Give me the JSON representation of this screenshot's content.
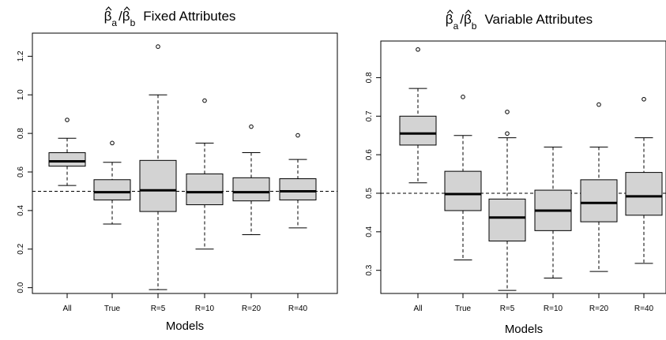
{
  "chart_data": [
    {
      "type": "boxplot",
      "title": {
        "sym_a": "β",
        "sub_a": "a",
        "sep": "/",
        "sym_b": "β",
        "sub_b": "b",
        "text": "Fixed Attributes"
      },
      "xlabel": "Models",
      "ylabel": "",
      "ylim": [
        -0.03,
        1.32
      ],
      "yticks": [
        "0.0",
        "0.2",
        "0.4",
        "0.6",
        "0.8",
        "1.0",
        "1.2"
      ],
      "reference_line": 0.5,
      "categories": [
        "All",
        "True",
        "R=5",
        "R=10",
        "R=20",
        "R=40"
      ],
      "boxes": [
        {
          "whisker_low": 0.53,
          "q1": 0.63,
          "median": 0.655,
          "q3": 0.7,
          "whisker_high": 0.775,
          "outliers": [
            0.87
          ]
        },
        {
          "whisker_low": 0.33,
          "q1": 0.455,
          "median": 0.495,
          "q3": 0.56,
          "whisker_high": 0.65,
          "outliers": [
            0.75
          ]
        },
        {
          "whisker_low": -0.01,
          "q1": 0.395,
          "median": 0.505,
          "q3": 0.66,
          "whisker_high": 1.0,
          "outliers": [
            1.25
          ]
        },
        {
          "whisker_low": 0.2,
          "q1": 0.43,
          "median": 0.495,
          "q3": 0.59,
          "whisker_high": 0.75,
          "outliers": [
            0.97
          ]
        },
        {
          "whisker_low": 0.275,
          "q1": 0.45,
          "median": 0.495,
          "q3": 0.57,
          "whisker_high": 0.7,
          "outliers": [
            0.835
          ]
        },
        {
          "whisker_low": 0.31,
          "q1": 0.455,
          "median": 0.5,
          "q3": 0.565,
          "whisker_high": 0.665,
          "outliers": [
            0.79
          ]
        }
      ]
    },
    {
      "type": "boxplot",
      "title": {
        "sym_a": "β",
        "sub_a": "a",
        "sep": "/",
        "sym_b": "β",
        "sub_b": "b",
        "text": "Variable Attributes"
      },
      "xlabel": "Models",
      "ylabel": "",
      "ylim": [
        0.24,
        0.895
      ],
      "yticks": [
        "0.3",
        "0.4",
        "0.5",
        "0.6",
        "0.7",
        "0.8"
      ],
      "reference_line": 0.5,
      "categories": [
        "All",
        "True",
        "R=5",
        "R=10",
        "R=20",
        "R=40"
      ],
      "boxes": [
        {
          "whisker_low": 0.527,
          "q1": 0.625,
          "median": 0.655,
          "q3": 0.7,
          "whisker_high": 0.772,
          "outliers": [
            0.873
          ]
        },
        {
          "whisker_low": 0.327,
          "q1": 0.455,
          "median": 0.498,
          "q3": 0.557,
          "whisker_high": 0.65,
          "outliers": [
            0.75
          ]
        },
        {
          "whisker_low": 0.248,
          "q1": 0.376,
          "median": 0.437,
          "q3": 0.485,
          "whisker_high": 0.644,
          "outliers": [
            0.655,
            0.711
          ]
        },
        {
          "whisker_low": 0.28,
          "q1": 0.403,
          "median": 0.455,
          "q3": 0.508,
          "whisker_high": 0.62,
          "outliers": []
        },
        {
          "whisker_low": 0.297,
          "q1": 0.426,
          "median": 0.475,
          "q3": 0.535,
          "whisker_high": 0.62,
          "outliers": [
            0.73
          ]
        },
        {
          "whisker_low": 0.318,
          "q1": 0.443,
          "median": 0.492,
          "q3": 0.554,
          "whisker_high": 0.644,
          "outliers": [
            0.744
          ]
        }
      ]
    }
  ]
}
